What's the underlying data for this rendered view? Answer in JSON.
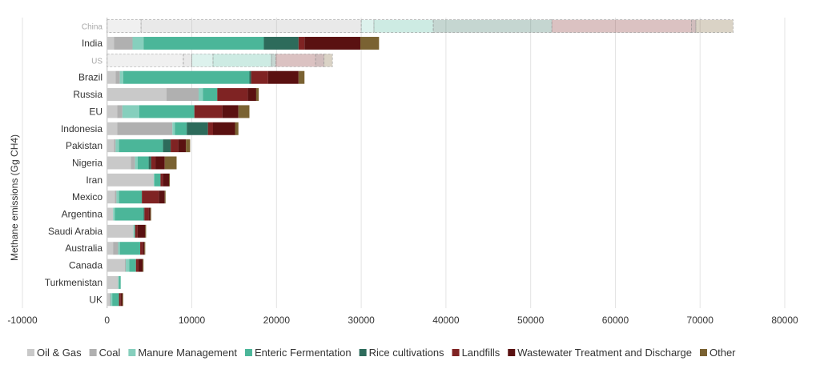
{
  "chart_data": {
    "type": "bar",
    "orientation": "horizontal",
    "stacked": true,
    "title": "",
    "xlabel": "",
    "ylabel": "Methane emissions (Gg CH4)",
    "xlim": [
      -10000,
      80000
    ],
    "x_ticks": [
      "-10000",
      "0",
      "10000",
      "20000",
      "30000",
      "40000",
      "50000",
      "60000",
      "70000",
      "80000"
    ],
    "grid": "vertical",
    "legend_position": "bottom",
    "categories": [
      "China",
      "India",
      "US",
      "Brazil",
      "Russia",
      "EU",
      "Indonesia",
      "Pakistan",
      "Nigeria",
      "Iran",
      "Mexico",
      "Argentina",
      "Saudi Arabia",
      "Australia",
      "Canada",
      "Turkmenistan",
      "UK"
    ],
    "faded_categories": [
      "China",
      "US"
    ],
    "series": [
      {
        "name": "Oil & Gas",
        "color": "#c9c9c9",
        "values": [
          4000,
          800,
          9000,
          1000,
          7000,
          1200,
          1200,
          800,
          2800,
          5500,
          900,
          700,
          3100,
          700,
          2100,
          1300,
          300
        ]
      },
      {
        "name": "Coal",
        "color": "#b0b0b0",
        "values": [
          26000,
          2200,
          1000,
          500,
          3800,
          600,
          6500,
          200,
          500,
          0,
          200,
          0,
          0,
          600,
          100,
          0,
          100
        ]
      },
      {
        "name": "Manure Management",
        "color": "#86cfbd",
        "values": [
          1500,
          1300,
          2500,
          400,
          500,
          2000,
          300,
          400,
          300,
          100,
          300,
          200,
          100,
          200,
          400,
          100,
          200
        ]
      },
      {
        "name": "Enteric Fermentation",
        "color": "#4bb699",
        "values": [
          7000,
          14200,
          6900,
          14900,
          1700,
          6500,
          1400,
          5200,
          1300,
          700,
          2700,
          3400,
          100,
          2400,
          800,
          200,
          800
        ]
      },
      {
        "name": "Rice cultivations",
        "color": "#2d6b5b",
        "values": [
          14000,
          4100,
          500,
          200,
          0,
          0,
          2500,
          900,
          300,
          0,
          0,
          100,
          0,
          0,
          0,
          0,
          0
        ]
      },
      {
        "name": "Landfills",
        "color": "#7f2323",
        "values": [
          16500,
          700,
          4700,
          2000,
          3600,
          3300,
          600,
          900,
          500,
          300,
          2000,
          500,
          300,
          300,
          300,
          0,
          200
        ]
      },
      {
        "name": "Wastewater Treatment and Discharge",
        "color": "#5a1111",
        "values": [
          500,
          6600,
          1000,
          3600,
          1000,
          1900,
          2600,
          900,
          1100,
          700,
          700,
          200,
          900,
          200,
          500,
          0,
          200
        ]
      },
      {
        "name": "Other",
        "color": "#7a6232",
        "values": [
          4400,
          2200,
          1000,
          700,
          300,
          1300,
          400,
          500,
          1400,
          100,
          100,
          100,
          100,
          100,
          100,
          0,
          100
        ]
      }
    ]
  }
}
